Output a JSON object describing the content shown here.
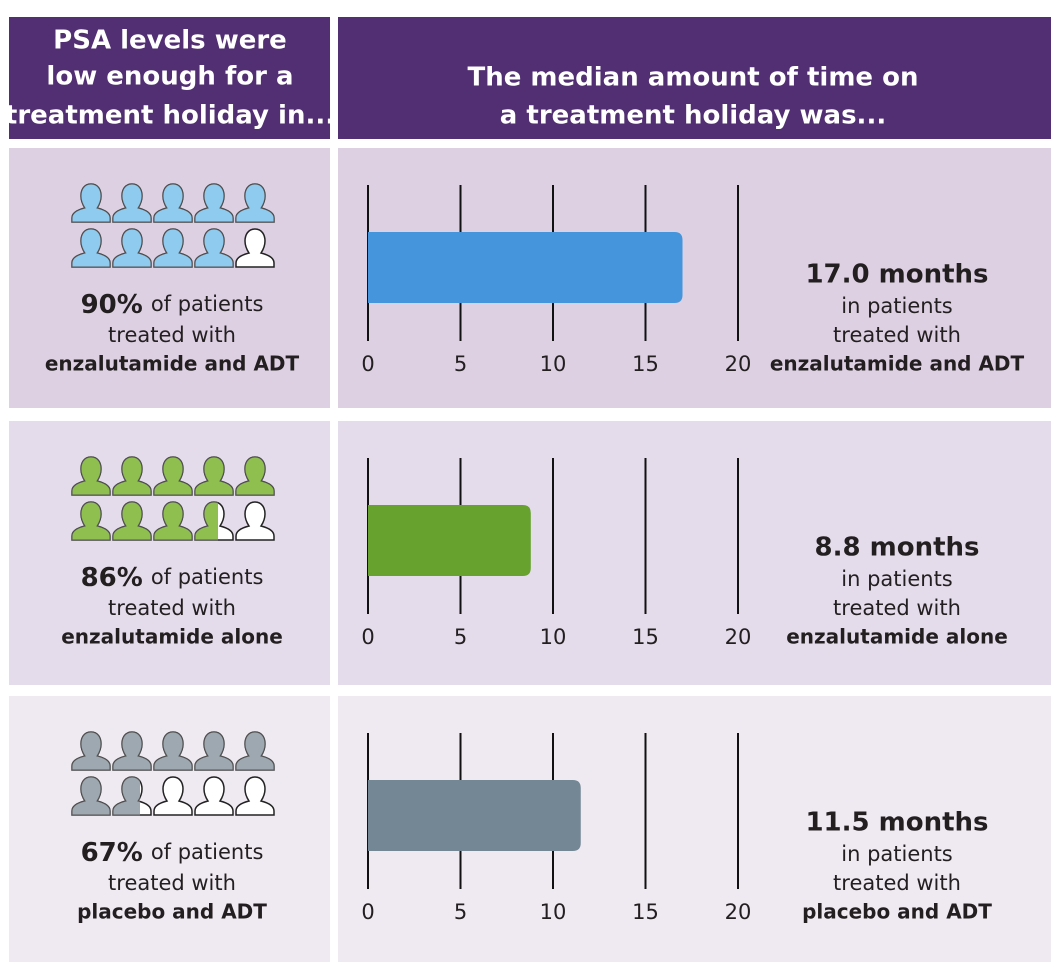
{
  "header": {
    "left": [
      "PSA levels were",
      "low enough for a",
      "treatment holiday in..."
    ],
    "right": [
      "The median amount of time on",
      "a treatment holiday was..."
    ]
  },
  "rows": [
    {
      "percent": 90,
      "percent_label": "90%",
      "percent_suffix": "of patients",
      "line2": "treated with",
      "group": "enzalutamide and ADT",
      "group_color": "#4a97d8",
      "icon_color": "#8fcbef",
      "background": "#dcd0e2",
      "right_line1": "in patients",
      "right_line2": "treated with"
    },
    {
      "percent": 86,
      "percent_label": "86%",
      "percent_suffix": "of patients",
      "line2": "treated with",
      "group": "enzalutamide alone",
      "group_color": "#111111",
      "icon_color": "#8fc04f",
      "background": "#e5dceb",
      "right_line1": "in patients",
      "right_line2": "treated with"
    },
    {
      "percent": 67,
      "percent_label": "67%",
      "percent_suffix": "of patients",
      "line2": "treated with",
      "group": "placebo and ADT",
      "group_color": "#7a8b99",
      "icon_color": "#9ea8b0",
      "background": "#efe9f1",
      "right_line1": "in patients",
      "right_line2": "treated with"
    }
  ],
  "chart_data": [
    {
      "type": "bar",
      "orientation": "horizontal",
      "values": [
        17.0
      ],
      "value_labels": [
        "17.0 months"
      ],
      "color": "#4495dc",
      "xlim": [
        0,
        20
      ],
      "xticks": [
        0,
        5,
        10,
        15,
        20
      ]
    },
    {
      "type": "bar",
      "orientation": "horizontal",
      "values": [
        8.8
      ],
      "value_labels": [
        "8.8 months"
      ],
      "color": "#67a22f",
      "xlim": [
        0,
        20
      ],
      "xticks": [
        0,
        5,
        10,
        15,
        20
      ]
    },
    {
      "type": "bar",
      "orientation": "horizontal",
      "values": [
        11.5
      ],
      "value_labels": [
        "11.5 months"
      ],
      "color": "#738795",
      "xlim": [
        0,
        20
      ],
      "xticks": [
        0,
        5,
        10,
        15,
        20
      ]
    }
  ]
}
